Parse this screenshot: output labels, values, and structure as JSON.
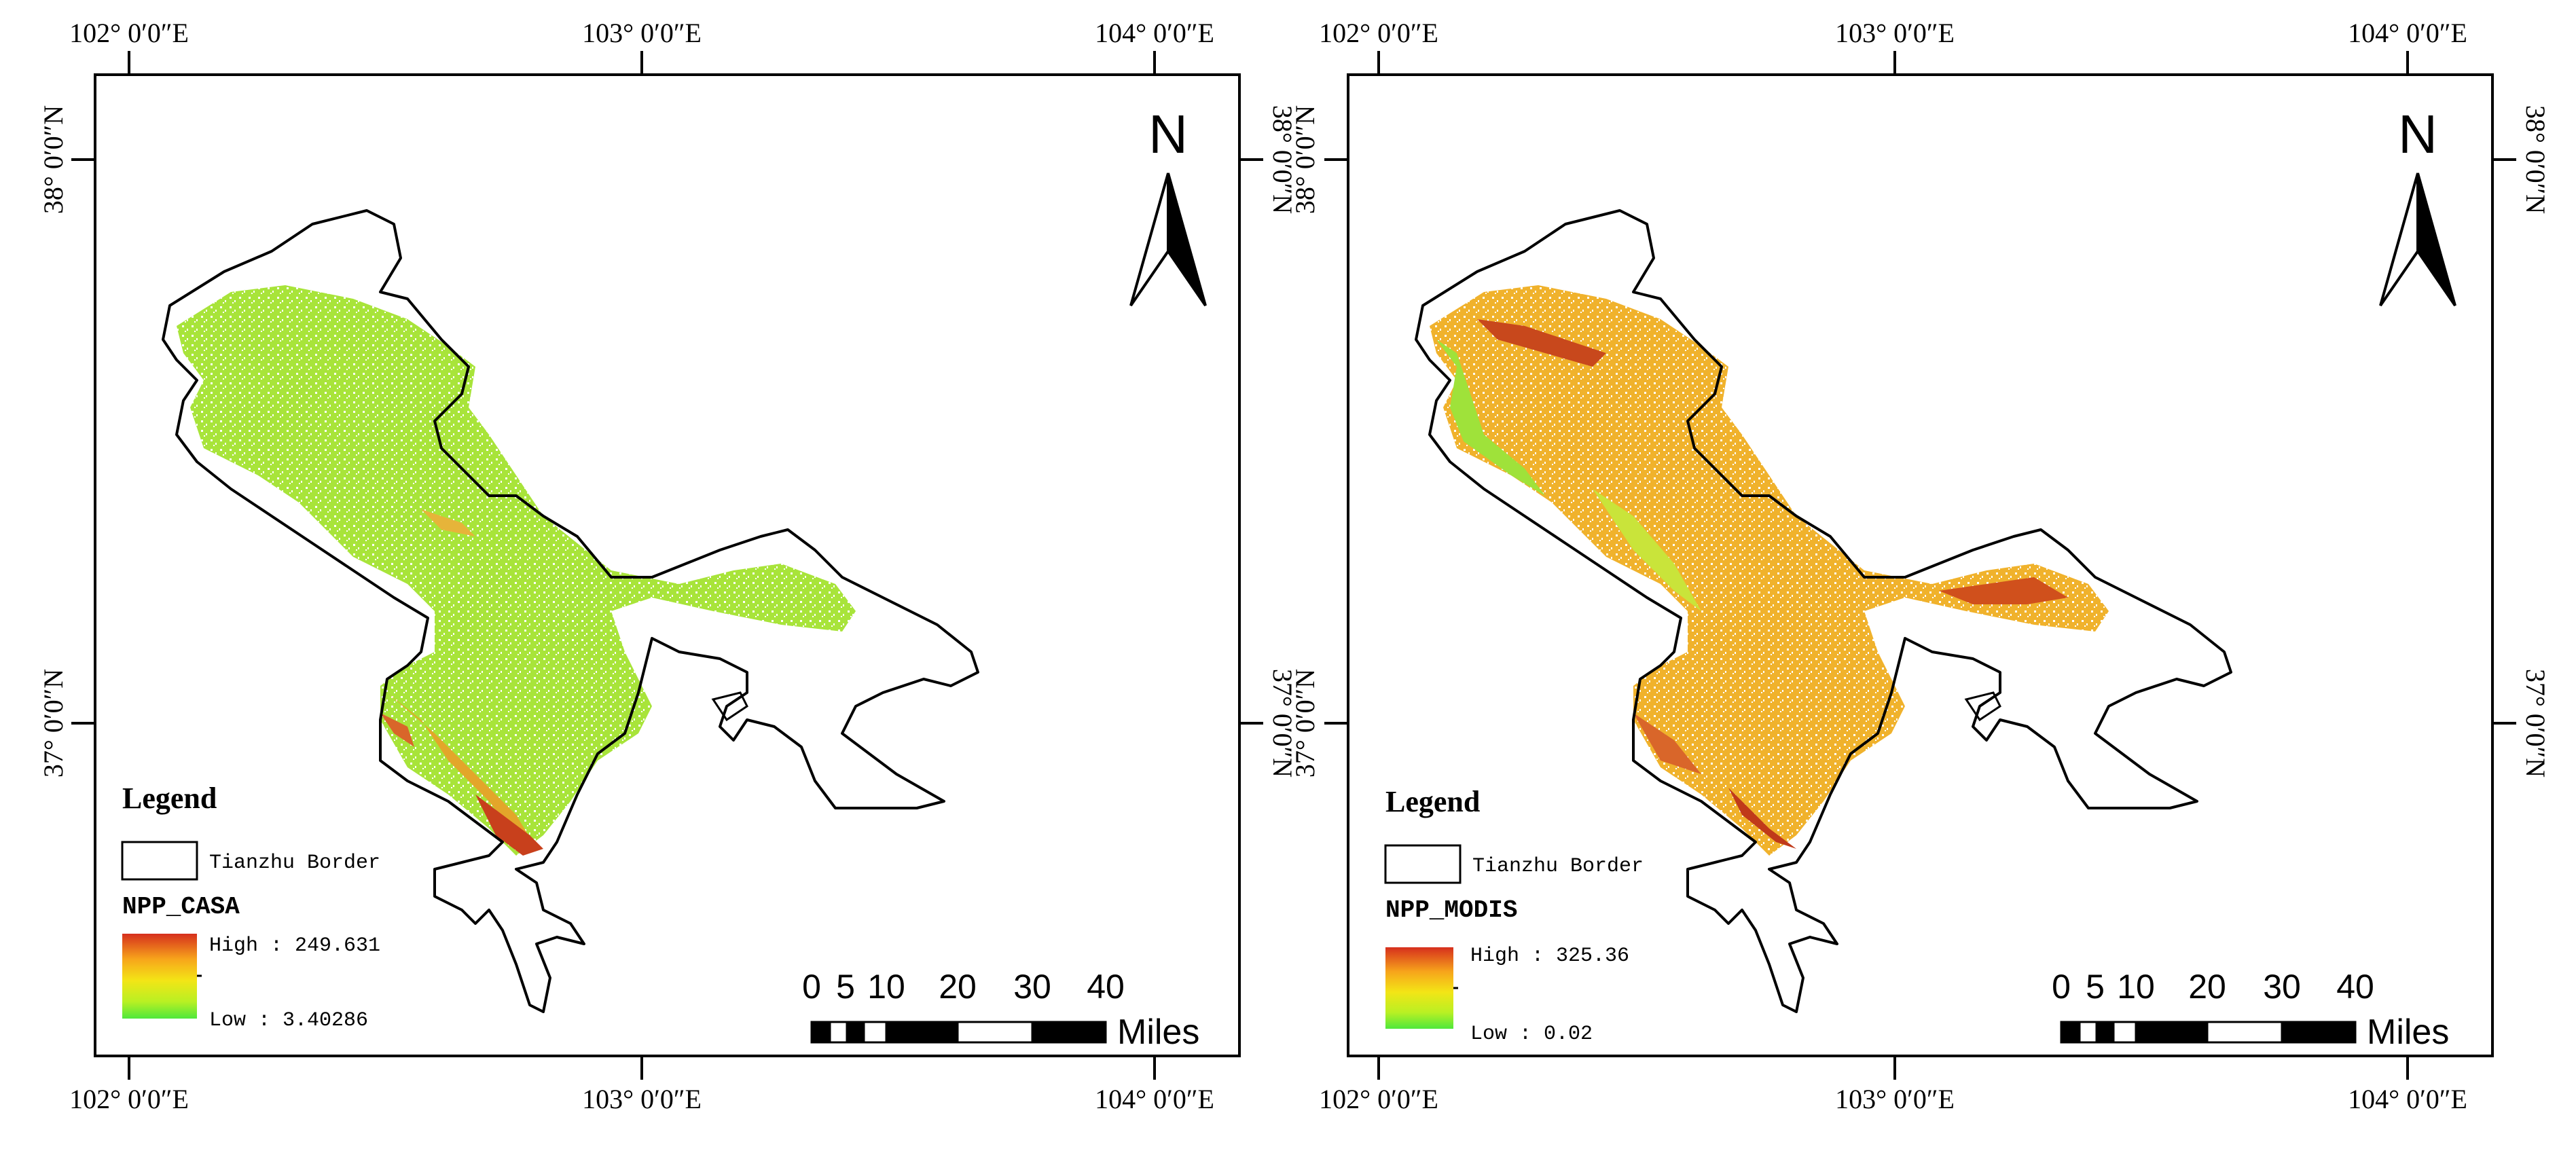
{
  "maps": [
    {
      "id": "casa",
      "coords": {
        "top_lon": [
          "102° 0′0″E",
          "103° 0′0″E",
          "104° 0′0″E"
        ],
        "bottom_lon": [
          "102° 0′0″E",
          "103° 0′0″E",
          "104° 0′0″E"
        ],
        "left_lat": [
          "38° 0′0″N",
          "37° 0′0″N"
        ],
        "right_lat": [
          "38° 0′0″N",
          "37° 0′0″N"
        ]
      },
      "north_label": "N",
      "legend": {
        "title": "Legend",
        "border_label": "Tianzhu Border",
        "ramp_title": "NPP_CASA",
        "high_label": "High : 249.631",
        "low_label": "Low : 3.40286",
        "ramp_colors": [
          "#d62f1d",
          "#f7a51b",
          "#f3e516",
          "#b9f023",
          "#4fe83b"
        ]
      },
      "scale": {
        "ticks": [
          "0",
          "5",
          "10",
          "20",
          "30",
          "40"
        ],
        "unit": "Miles"
      },
      "fill_color": "#a8e43a",
      "accent_color": "#e3a62a"
    },
    {
      "id": "modis",
      "coords": {
        "top_lon": [
          "102° 0′0″E",
          "103° 0′0″E",
          "104° 0′0″E"
        ],
        "bottom_lon": [
          "102° 0′0″E",
          "103° 0′0″E",
          "104° 0′0″E"
        ],
        "left_lat": [
          "38° 0′0″N",
          "37° 0′0″N"
        ],
        "right_lat": [
          "38° 0′0″N",
          "37° 0′0″N"
        ]
      },
      "north_label": "N",
      "legend": {
        "title": "Legend",
        "border_label": "Tianzhu Border",
        "ramp_title": "NPP_MODIS",
        "high_label": "High : 325.36",
        "low_label": "Low : 0.02",
        "ramp_colors": [
          "#d62f1d",
          "#f7a51b",
          "#f3e516",
          "#b9f023",
          "#4fe83b"
        ]
      },
      "scale": {
        "ticks": [
          "0",
          "5",
          "10",
          "20",
          "30",
          "40"
        ],
        "unit": "Miles"
      },
      "fill_color": "#f0b22c",
      "accent_color": "#c84a1c"
    }
  ]
}
